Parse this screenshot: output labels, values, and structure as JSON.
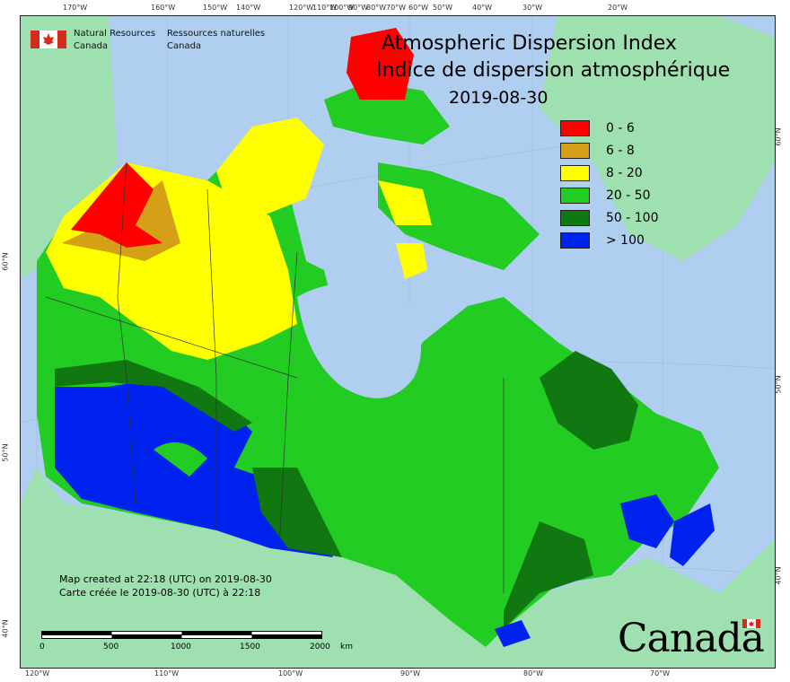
{
  "title": {
    "line1": "Atmospheric Dispersion Index",
    "line2": "Indice de dispersion atmosphérique",
    "date": "2019-08-30"
  },
  "org": {
    "name_en": "Natural Resources\nCanada",
    "name_fr": "Ressources naturelles\nCanada",
    "name_en_l1": "Natural Resources",
    "name_en_l2": "Canada",
    "name_fr_l1": "Ressources naturelles",
    "name_fr_l2": "Canada"
  },
  "legend": [
    {
      "label": "0 - 6",
      "color": "#ff0000"
    },
    {
      "label": "6 - 8",
      "color": "#d4a017"
    },
    {
      "label": "8 - 20",
      "color": "#ffff00"
    },
    {
      "label": "20 - 50",
      "color": "#22cc22"
    },
    {
      "label": "50 - 100",
      "color": "#117711"
    },
    {
      "label": "> 100",
      "color": "#0022ee"
    }
  ],
  "notes": {
    "line_en": "Map created at 22:18 (UTC) on 2019-08-30",
    "line_fr": "Carte créée le 2019-08-30 (UTC) à 22:18"
  },
  "scale_bar": {
    "ticks": [
      "0",
      "500",
      "1000",
      "1500",
      "2000"
    ],
    "unit": "km"
  },
  "top_ticks": [
    "170°W",
    "160°W",
    "150°W",
    "140°W",
    "120°W",
    "110°W",
    "100°W",
    "90°W",
    "80°W",
    "70°W",
    "60°W",
    "50°W",
    "40°W",
    "30°W",
    "20°W"
  ],
  "bottom_ticks": [
    "120°W",
    "110°W",
    "100°W",
    "90°W",
    "80°W",
    "70°W"
  ],
  "left_ticks": [
    "60°N",
    "50°N",
    "40°N"
  ],
  "right_ticks": [
    "60°N",
    "50°N",
    "40°N"
  ],
  "wordmark": "Canada",
  "colors": {
    "ocean": "#b0cff0",
    "land_outside": "#9fe0b0",
    "border": "#333333"
  }
}
